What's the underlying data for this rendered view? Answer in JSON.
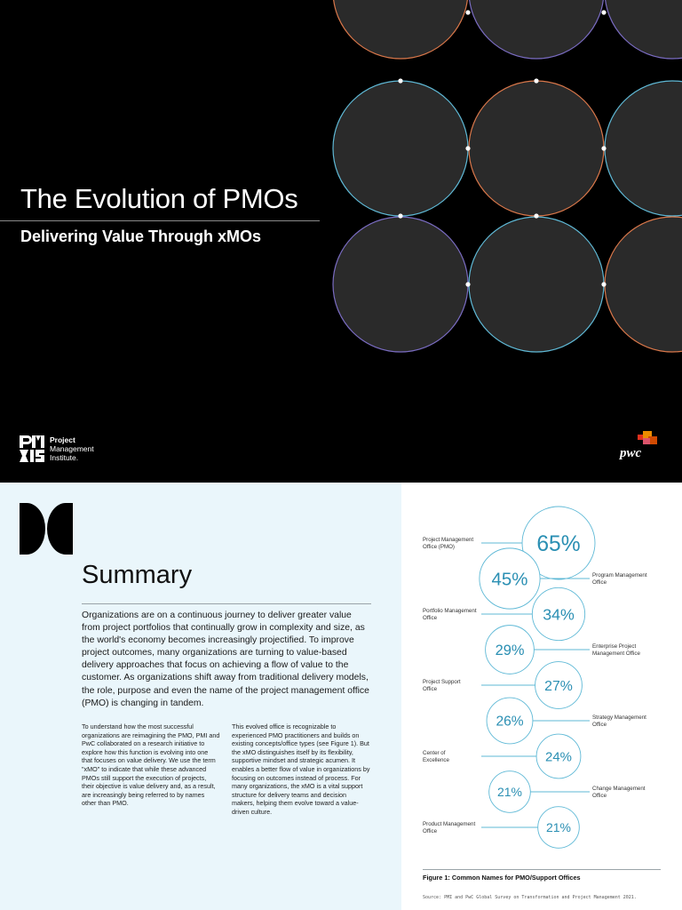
{
  "cover": {
    "title": "The Evolution of PMOs",
    "subtitle": "Delivering Value Through xMOs",
    "pmi_lines": [
      "Project",
      "Management",
      "Institute."
    ],
    "pwc_text": "pwc",
    "colors": {
      "background": "#000000",
      "circle_fill": "#2a2a2a",
      "orange": "#d9774a",
      "blue": "#5fb9d6",
      "purple": "#7a6cc2"
    }
  },
  "summary": {
    "heading": "Summary",
    "lead": "Organizations are on a continuous journey to deliver greater value from project portfolios that continually grow in complexity and size, as the world's economy becomes increasingly projectified. To improve project outcomes, many organizations are turning to value-based delivery approaches that focus on achieving a flow of value to the customer. As organizations shift away from traditional delivery models, the role, purpose and even the name of the project management office (PMO) is changing in tandem.",
    "column_a": "To understand how the most successful organizations are reimagining the PMO, PMI and PwC collaborated on a research initiative to explore how this function is evolving into one that focuses on value delivery. We use the term \"xMO\" to indicate that while these advanced PMOs still support the execution of projects, their objective is value delivery and, as a result, are increasingly being referred to by names other than PMO.",
    "column_b": "This evolved office is recognizable to experienced PMO practitioners and builds on existing concepts/office types (see Figure 1). But the xMO distinguishes itself by its flexibility, supportive mindset and strategic acumen. It enables a better flow of value in organizations by focusing on outcomes instead of process. For many organizations, the xMO is a vital support structure for delivery teams and decision makers, helping them evolve toward a value-driven culture.",
    "colors": {
      "background": "#eaf6fb"
    }
  },
  "figure": {
    "caption": "Figure 1: Common Names for PMO/Support Offices",
    "source": "Source: PMI and PwC Global Survey on Transformation and Project Management 2021.",
    "colors": {
      "circle_stroke": "#5fb9d6",
      "value_text": "#2a8fb3"
    }
  },
  "chart_data": {
    "type": "bubble-list",
    "title": "Figure 1: Common Names for PMO/Support Offices",
    "unit": "%",
    "items": [
      {
        "label": [
          "Project Management",
          "Office (PMO)"
        ],
        "value": 65,
        "side": "left"
      },
      {
        "label": [
          "Program Management",
          "Office"
        ],
        "value": 45,
        "side": "right"
      },
      {
        "label": [
          "Portfolio Management",
          "Office"
        ],
        "value": 34,
        "side": "left"
      },
      {
        "label": [
          "Enterprise Project",
          "Management Office"
        ],
        "value": 29,
        "side": "right"
      },
      {
        "label": [
          "Project Support",
          "Office"
        ],
        "value": 27,
        "side": "left"
      },
      {
        "label": [
          "Strategy Management",
          "Office"
        ],
        "value": 26,
        "side": "right"
      },
      {
        "label": [
          "Center of",
          "Excellence"
        ],
        "value": 24,
        "side": "left"
      },
      {
        "label": [
          "Change Management",
          "Office"
        ],
        "value": 21,
        "side": "right"
      },
      {
        "label": [
          "Product Management",
          "Office"
        ],
        "value": 21,
        "side": "left"
      }
    ]
  }
}
